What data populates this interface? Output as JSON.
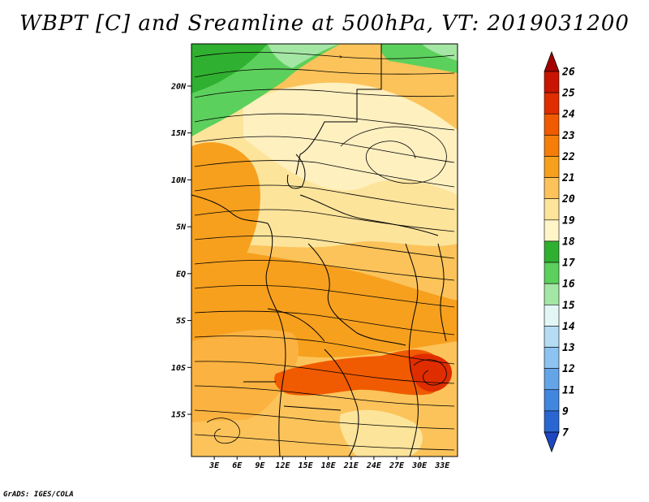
{
  "title": "WBPT [C] and Sreamline at 500hPa, VT: 2019031200",
  "credit": "GrADS: IGES/COLA",
  "map": {
    "lat_labels": [
      {
        "lat": 20,
        "text": "20N"
      },
      {
        "lat": 15,
        "text": "15N"
      },
      {
        "lat": 10,
        "text": "10N"
      },
      {
        "lat": 5,
        "text": "5N"
      },
      {
        "lat": 0,
        "text": "EQ"
      },
      {
        "lat": -5,
        "text": "5S"
      },
      {
        "lat": -10,
        "text": "10S"
      },
      {
        "lat": -15,
        "text": "15S"
      }
    ],
    "lon_labels": [
      {
        "lon": 3,
        "text": "3E"
      },
      {
        "lon": 6,
        "text": "6E"
      },
      {
        "lon": 9,
        "text": "9E"
      },
      {
        "lon": 12,
        "text": "12E"
      },
      {
        "lon": 15,
        "text": "15E"
      },
      {
        "lon": 18,
        "text": "18E"
      },
      {
        "lon": 21,
        "text": "21E"
      },
      {
        "lon": 24,
        "text": "24E"
      },
      {
        "lon": 27,
        "text": "27E"
      },
      {
        "lon": 30,
        "text": "30E"
      },
      {
        "lon": 33,
        "text": "33E"
      }
    ],
    "lat_range": [
      -19.5,
      24.5
    ],
    "lon_range": [
      0,
      35
    ]
  },
  "colorbar": {
    "labels": [
      "26",
      "25",
      "24",
      "23",
      "22",
      "21",
      "20",
      "19",
      "18",
      "17",
      "16",
      "15",
      "14",
      "13",
      "12",
      "11",
      "9",
      "7"
    ],
    "colors": [
      "#a50000",
      "#c81400",
      "#e02d00",
      "#f05a00",
      "#f57d0a",
      "#f7a01e",
      "#fbc35a",
      "#fde49b",
      "#fff5c8",
      "#30b030",
      "#5cd05c",
      "#a4e6a4",
      "#e2f6f6",
      "#b4dcf5",
      "#8cc3f0",
      "#64a5e8",
      "#4187e0",
      "#2a66d2",
      "#1e46c0"
    ]
  }
}
